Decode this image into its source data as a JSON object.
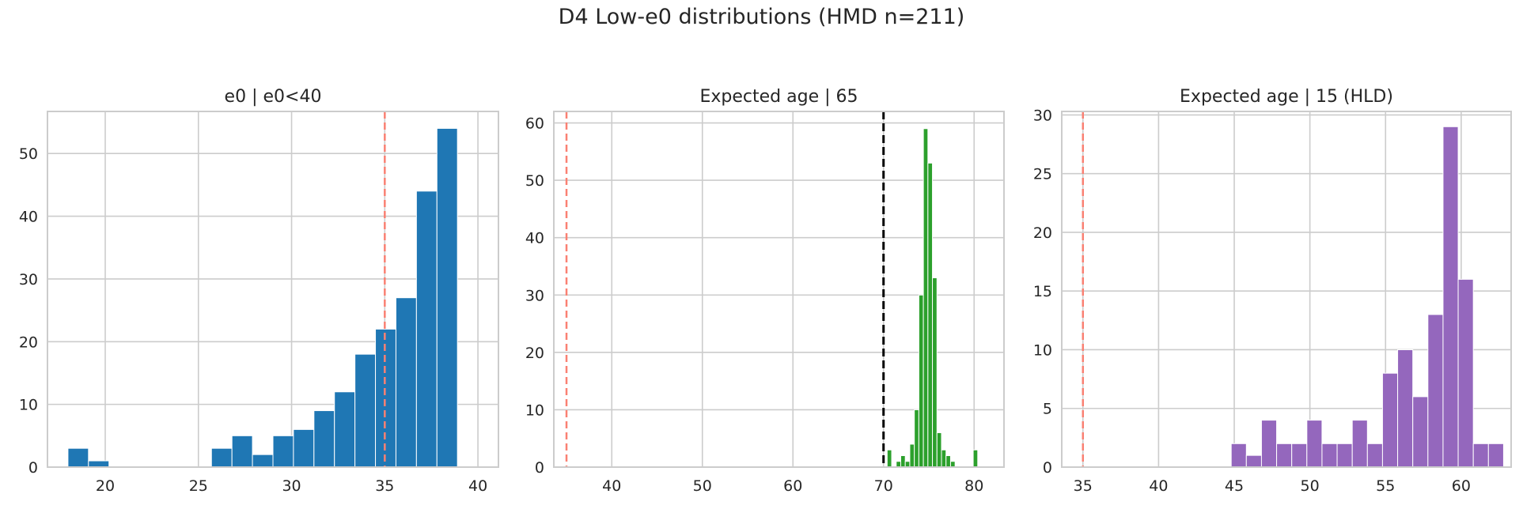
{
  "figure": {
    "suptitle": "D4 Low-e0 distributions (HMD n=211)"
  },
  "chart_data": [
    {
      "type": "bar",
      "title": "e0 | e0<40",
      "xlabel": "",
      "ylabel": "",
      "xlim": [
        16.9,
        41.1
      ],
      "ylim": [
        0,
        56.7
      ],
      "xticks": [
        20,
        25,
        30,
        35,
        40
      ],
      "yticks": [
        0,
        10,
        20,
        30,
        40,
        50
      ],
      "grid": true,
      "color": "#1f77b4",
      "bin_width": 1.1,
      "bins": [
        {
          "x": 18.0,
          "value": 3
        },
        {
          "x": 19.1,
          "value": 1
        },
        {
          "x": 25.7,
          "value": 3
        },
        {
          "x": 26.8,
          "value": 5
        },
        {
          "x": 27.9,
          "value": 2
        },
        {
          "x": 29.0,
          "value": 5
        },
        {
          "x": 30.1,
          "value": 6
        },
        {
          "x": 31.2,
          "value": 9
        },
        {
          "x": 32.3,
          "value": 12
        },
        {
          "x": 33.4,
          "value": 18
        },
        {
          "x": 34.5,
          "value": 22
        },
        {
          "x": 35.6,
          "value": 27
        },
        {
          "x": 36.7,
          "value": 44
        },
        {
          "x": 37.8,
          "value": 54
        }
      ],
      "vlines": [
        {
          "x": 35,
          "color": "#fa8072",
          "style": "dashed"
        }
      ]
    },
    {
      "type": "bar",
      "title": "Expected age | 65",
      "xlabel": "",
      "ylabel": "",
      "xlim": [
        33.6,
        83.3
      ],
      "ylim": [
        0,
        62
      ],
      "xticks": [
        40,
        50,
        60,
        70,
        80
      ],
      "yticks": [
        0,
        10,
        20,
        30,
        40,
        50,
        60
      ],
      "grid": true,
      "color": "#2ca02c",
      "bin_width": 0.5,
      "bins": [
        {
          "x": 70.4,
          "value": 3
        },
        {
          "x": 71.4,
          "value": 1
        },
        {
          "x": 71.9,
          "value": 2
        },
        {
          "x": 72.4,
          "value": 1
        },
        {
          "x": 72.9,
          "value": 4
        },
        {
          "x": 73.4,
          "value": 10
        },
        {
          "x": 73.9,
          "value": 30
        },
        {
          "x": 74.4,
          "value": 59
        },
        {
          "x": 74.9,
          "value": 53
        },
        {
          "x": 75.4,
          "value": 33
        },
        {
          "x": 75.9,
          "value": 6
        },
        {
          "x": 76.4,
          "value": 3
        },
        {
          "x": 76.9,
          "value": 2
        },
        {
          "x": 77.4,
          "value": 1
        },
        {
          "x": 79.9,
          "value": 3
        }
      ],
      "vlines": [
        {
          "x": 35,
          "color": "#fa8072",
          "style": "dashed"
        },
        {
          "x": 70,
          "color": "#000000",
          "style": "dashed"
        }
      ]
    },
    {
      "type": "bar",
      "title": "Expected age | 15 (HLD)",
      "xlabel": "",
      "ylabel": "",
      "xlim": [
        33.6,
        63.3
      ],
      "ylim": [
        0,
        30.3
      ],
      "xticks": [
        35,
        40,
        45,
        50,
        55,
        60
      ],
      "yticks": [
        0,
        5,
        10,
        15,
        20,
        25,
        30
      ],
      "grid": true,
      "color": "#9467bd",
      "bin_width": 1.0,
      "bins": [
        {
          "x": 44.8,
          "value": 2
        },
        {
          "x": 45.8,
          "value": 1
        },
        {
          "x": 46.8,
          "value": 4
        },
        {
          "x": 47.8,
          "value": 2
        },
        {
          "x": 48.8,
          "value": 2
        },
        {
          "x": 49.8,
          "value": 4
        },
        {
          "x": 50.8,
          "value": 2
        },
        {
          "x": 51.8,
          "value": 2
        },
        {
          "x": 52.8,
          "value": 4
        },
        {
          "x": 53.8,
          "value": 2
        },
        {
          "x": 54.8,
          "value": 8
        },
        {
          "x": 55.8,
          "value": 10
        },
        {
          "x": 56.8,
          "value": 6
        },
        {
          "x": 57.8,
          "value": 13
        },
        {
          "x": 58.8,
          "value": 29
        },
        {
          "x": 59.8,
          "value": 16
        },
        {
          "x": 60.8,
          "value": 2
        },
        {
          "x": 61.8,
          "value": 2
        }
      ],
      "vlines": [
        {
          "x": 35,
          "color": "#fa8072",
          "style": "dashed"
        }
      ]
    }
  ]
}
